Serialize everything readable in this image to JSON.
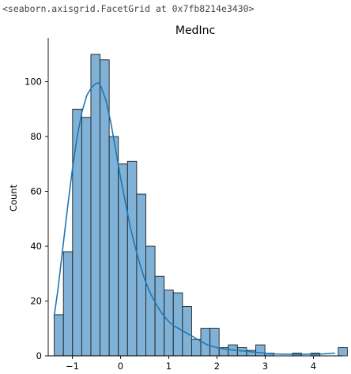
{
  "output_repr": "<seaborn.axisgrid.FacetGrid at 0x7fb8214e3430>",
  "chart_data": {
    "type": "bar",
    "title": "MedInc",
    "xlabel": "",
    "ylabel": "Count",
    "xlim": [
      -1.5,
      4.6
    ],
    "ylim": [
      0,
      116
    ],
    "xticks": [
      -1,
      0,
      1,
      2,
      3,
      4
    ],
    "xtick_labels": [
      "−1",
      "0",
      "1",
      "2",
      "3",
      "4"
    ],
    "yticks": [
      0,
      20,
      40,
      60,
      80,
      100
    ],
    "ytick_labels": [
      "0",
      "20",
      "40",
      "60",
      "80",
      "100"
    ],
    "bin_start": -1.375,
    "bin_width": 0.19,
    "counts": [
      15,
      38,
      90,
      87,
      110,
      108,
      80,
      70,
      71,
      59,
      40,
      29,
      24,
      23,
      18,
      6,
      10,
      10,
      3,
      4,
      3,
      2,
      4,
      1,
      0,
      0,
      1,
      0,
      1,
      0,
      0,
      3
    ],
    "bar_color": "#7fb2d6",
    "edge_color": "#1f1f1f",
    "kde_color": "#1f77b4",
    "kde": {
      "x": [
        -1.38,
        -1.3,
        -1.2,
        -1.1,
        -1.0,
        -0.9,
        -0.8,
        -0.7,
        -0.6,
        -0.5,
        -0.45,
        -0.4,
        -0.3,
        -0.2,
        -0.1,
        0.0,
        0.1,
        0.2,
        0.3,
        0.4,
        0.5,
        0.6,
        0.7,
        0.8,
        0.9,
        1.0,
        1.1,
        1.2,
        1.3,
        1.4,
        1.5,
        1.6,
        1.7,
        1.8,
        1.9,
        2.0,
        2.2,
        2.4,
        2.6,
        2.8,
        3.0,
        3.2,
        3.4,
        3.6,
        3.8,
        4.0,
        4.2,
        4.45
      ],
      "y": [
        14,
        24,
        39,
        54,
        68,
        80,
        89,
        95,
        98,
        99.5,
        99.5,
        98,
        93,
        85,
        75,
        65,
        56,
        47,
        40,
        33.5,
        28,
        23.5,
        20,
        17,
        14.5,
        12.5,
        11,
        10,
        9,
        8,
        7,
        6,
        5,
        4,
        3.5,
        3,
        2.4,
        2,
        1.7,
        1.3,
        1,
        0.7,
        0.6,
        0.6,
        0.6,
        0.6,
        0.7,
        1
      ]
    }
  }
}
